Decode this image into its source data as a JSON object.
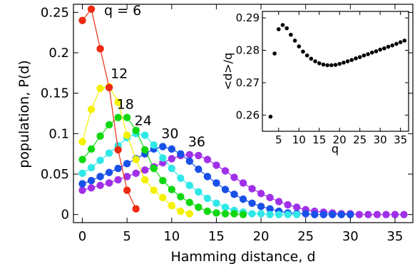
{
  "chart_data": [
    {
      "type": "line",
      "xlabel": "Hamming distance, d",
      "ylabel": "population, P(d)",
      "xlim": [
        -1,
        37
      ],
      "ylim": [
        -0.01,
        0.26
      ],
      "xticks": [
        0,
        5,
        10,
        15,
        20,
        25,
        30,
        35
      ],
      "yticks": [
        0,
        0.05,
        0.1,
        0.15,
        0.2,
        0.25
      ],
      "xtick_labels": [
        "0",
        "5",
        "10",
        "15",
        "20",
        "25",
        "30",
        "35"
      ],
      "ytick_labels": [
        "0",
        "0.05",
        "0.1",
        "0.15",
        "0.2",
        "0.25"
      ],
      "grid": false,
      "series": [
        {
          "label": "q = 6",
          "color": "#ee2a10",
          "x": [
            0,
            1,
            2,
            3,
            4,
            5,
            6
          ],
          "y": [
            0.24,
            0.254,
            0.205,
            0.157,
            0.08,
            0.03,
            0.007
          ]
        },
        {
          "label": "12",
          "color": "#f4f000",
          "x": [
            0,
            1,
            2,
            3,
            4,
            5,
            6,
            7,
            8,
            9,
            10,
            11,
            12
          ],
          "y": [
            0.09,
            0.13,
            0.156,
            0.158,
            0.139,
            0.098,
            0.068,
            0.043,
            0.03,
            0.021,
            0.011,
            0.004,
            0.001
          ]
        },
        {
          "label": "18",
          "color": "#10d810",
          "x": [
            0,
            1,
            2,
            3,
            4,
            5,
            6,
            7,
            8,
            9,
            10,
            11,
            12,
            13,
            14,
            15,
            16,
            17,
            18
          ],
          "y": [
            0.068,
            0.081,
            0.097,
            0.111,
            0.12,
            0.12,
            0.104,
            0.08,
            0.057,
            0.042,
            0.031,
            0.022,
            0.015,
            0.009,
            0.004,
            0.002,
            0.001,
            0.001,
            0.0
          ]
        },
        {
          "label": "24",
          "color": "#30e8e8",
          "x": [
            0,
            1,
            2,
            3,
            4,
            5,
            6,
            7,
            8,
            9,
            10,
            11,
            12,
            13,
            14,
            15,
            16,
            17,
            18,
            19,
            20,
            21,
            22,
            23,
            24
          ],
          "y": [
            0.051,
            0.058,
            0.067,
            0.076,
            0.085,
            0.095,
            0.1,
            0.098,
            0.086,
            0.07,
            0.057,
            0.045,
            0.036,
            0.028,
            0.02,
            0.014,
            0.009,
            0.005,
            0.003,
            0.001,
            0.001,
            0.0,
            0.0,
            0.0,
            0.0
          ]
        },
        {
          "label": "30",
          "color": "#1850e8",
          "x": [
            0,
            1,
            2,
            3,
            4,
            5,
            6,
            7,
            8,
            9,
            10,
            11,
            12,
            13,
            14,
            15,
            16,
            17,
            18,
            19,
            20,
            21,
            22,
            23,
            24,
            25,
            26,
            27,
            28,
            29,
            30
          ],
          "y": [
            0.038,
            0.042,
            0.047,
            0.052,
            0.057,
            0.063,
            0.069,
            0.075,
            0.081,
            0.084,
            0.081,
            0.075,
            0.066,
            0.056,
            0.047,
            0.039,
            0.031,
            0.025,
            0.019,
            0.014,
            0.01,
            0.007,
            0.004,
            0.002,
            0.001,
            0.001,
            0.0,
            0.0,
            0.0,
            0.0,
            0.0
          ]
        },
        {
          "label": "36",
          "color": "#a030e8",
          "x": [
            0,
            1,
            2,
            3,
            4,
            5,
            6,
            7,
            8,
            9,
            10,
            11,
            12,
            13,
            14,
            15,
            16,
            17,
            18,
            19,
            20,
            21,
            22,
            23,
            24,
            25,
            26,
            27,
            28,
            29,
            30,
            31,
            32,
            33,
            34,
            35,
            36
          ],
          "y": [
            0.03,
            0.033,
            0.036,
            0.039,
            0.043,
            0.047,
            0.051,
            0.055,
            0.059,
            0.064,
            0.069,
            0.073,
            0.074,
            0.073,
            0.068,
            0.061,
            0.054,
            0.046,
            0.039,
            0.032,
            0.026,
            0.021,
            0.016,
            0.012,
            0.009,
            0.006,
            0.004,
            0.003,
            0.002,
            0.001,
            0.001,
            0.0,
            0.0,
            0.0,
            0.0,
            0.0,
            0.0
          ]
        }
      ]
    },
    {
      "type": "scatter",
      "xlabel": "q",
      "ylabel": "<d>/q",
      "xlim": [
        1,
        37
      ],
      "ylim": [
        0.255,
        0.292
      ],
      "xticks": [
        5,
        10,
        15,
        20,
        25,
        30,
        35
      ],
      "yticks": [
        0.26,
        0.27,
        0.28,
        0.29
      ],
      "xtick_labels": [
        "5",
        "10",
        "15",
        "20",
        "25",
        "30",
        "35"
      ],
      "ytick_labels": [
        "0.26",
        "0.27",
        "0.28",
        "0.29"
      ],
      "grid": false,
      "color": "#000000",
      "x": [
        3,
        4,
        5,
        6,
        7,
        8,
        9,
        10,
        11,
        12,
        13,
        14,
        15,
        16,
        17,
        18,
        19,
        20,
        21,
        22,
        23,
        24,
        25,
        26,
        27,
        28,
        29,
        30,
        31,
        32,
        33,
        34,
        35,
        36
      ],
      "y": [
        0.2595,
        0.279,
        0.2865,
        0.2878,
        0.2868,
        0.2848,
        0.283,
        0.2812,
        0.2796,
        0.2784,
        0.2774,
        0.2766,
        0.276,
        0.2756,
        0.2754,
        0.2754,
        0.2755,
        0.2758,
        0.2762,
        0.2766,
        0.277,
        0.2775,
        0.2779,
        0.2784,
        0.2788,
        0.2793,
        0.2797,
        0.2802,
        0.2806,
        0.2811,
        0.2815,
        0.282,
        0.2825,
        0.283
      ]
    }
  ]
}
